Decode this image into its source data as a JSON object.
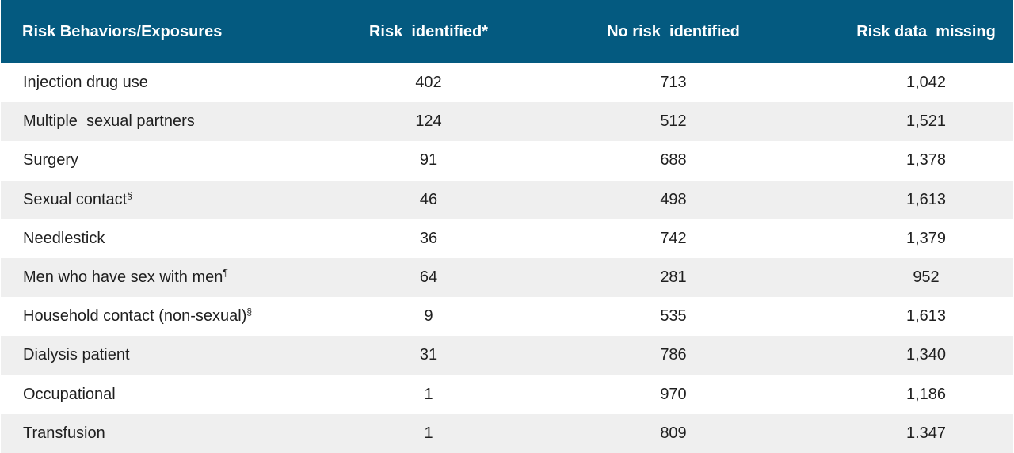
{
  "table": {
    "headers": [
      "Risk Behaviors/Exposures",
      "Risk  identified*",
      "No risk  identified",
      "Risk data  missing"
    ],
    "rows": [
      {
        "label": "Injection drug use",
        "sup": "",
        "identified": "402",
        "none": "713",
        "missing": "1,042"
      },
      {
        "label": "Multiple  sexual partners",
        "sup": "",
        "identified": "124",
        "none": "512",
        "missing": "1,521"
      },
      {
        "label": "Surgery",
        "sup": "",
        "identified": "91",
        "none": "688",
        "missing": "1,378"
      },
      {
        "label": "Sexual contact",
        "sup": "§",
        "identified": "46",
        "none": "498",
        "missing": "1,613"
      },
      {
        "label": "Needlestick",
        "sup": "",
        "identified": "36",
        "none": "742",
        "missing": "1,379"
      },
      {
        "label": "Men who have sex with men",
        "sup": "¶",
        "identified": "64",
        "none": "281",
        "missing": "952"
      },
      {
        "label": "Household contact (non-sexual)",
        "sup": "§",
        "identified": "9",
        "none": "535",
        "missing": "1,613"
      },
      {
        "label": "Dialysis patient",
        "sup": "",
        "identified": "31",
        "none": "786",
        "missing": "1,340"
      },
      {
        "label": "Occupational",
        "sup": "",
        "identified": "1",
        "none": "970",
        "missing": "1,186"
      },
      {
        "label": "Transfusion",
        "sup": "",
        "identified": "1",
        "none": "809",
        "missing": "1.347"
      }
    ]
  },
  "colors": {
    "header_bg": "#045a80",
    "header_text": "#ffffff",
    "stripe": "#efefef"
  }
}
